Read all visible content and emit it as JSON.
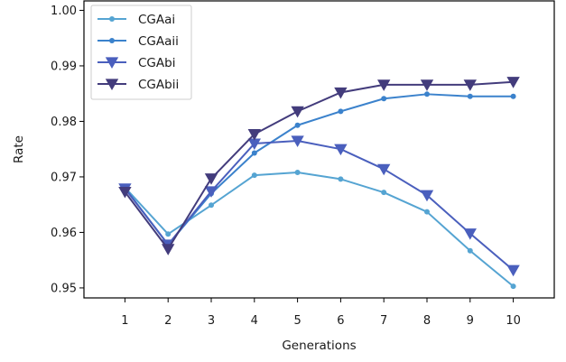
{
  "chart_data": {
    "type": "line",
    "title": "",
    "xlabel": "Generations",
    "ylabel": "Rate",
    "x": [
      1,
      2,
      3,
      4,
      5,
      6,
      7,
      8,
      9,
      10
    ],
    "x_ticks": [
      "1",
      "2",
      "3",
      "4",
      "5",
      "6",
      "7",
      "8",
      "9",
      "10"
    ],
    "xlim": [
      0.05,
      10.95
    ],
    "ylim": [
      0.9482,
      1.0017
    ],
    "y_ticks": [
      "0.95",
      "0.96",
      "0.97",
      "0.98",
      "0.99",
      "1.00"
    ],
    "grid": false,
    "legend_position": "top-left",
    "series": [
      {
        "name": "CGAai",
        "color": "#55a4d2",
        "marker": "circle-small",
        "values": [
          0.9681,
          0.9597,
          0.9649,
          0.9703,
          0.9708,
          0.9696,
          0.9672,
          0.9637,
          0.9567,
          0.9503
        ]
      },
      {
        "name": "CGAaii",
        "color": "#3b82cc",
        "marker": "circle-small",
        "values": [
          0.968,
          0.9578,
          0.967,
          0.9743,
          0.9793,
          0.9818,
          0.9841,
          0.9849,
          0.9845,
          0.9845
        ]
      },
      {
        "name": "CGAbi",
        "color": "#4a5fbd",
        "marker": "triangle-down",
        "values": [
          0.9679,
          0.9578,
          0.9674,
          0.976,
          0.9765,
          0.975,
          0.9714,
          0.9667,
          0.9598,
          0.9532
        ]
      },
      {
        "name": "CGAbii",
        "color": "#433c7c",
        "marker": "triangle-down",
        "values": [
          0.9673,
          0.957,
          0.9697,
          0.9777,
          0.9818,
          0.9852,
          0.9866,
          0.9866,
          0.9866,
          0.9871
        ]
      }
    ]
  }
}
